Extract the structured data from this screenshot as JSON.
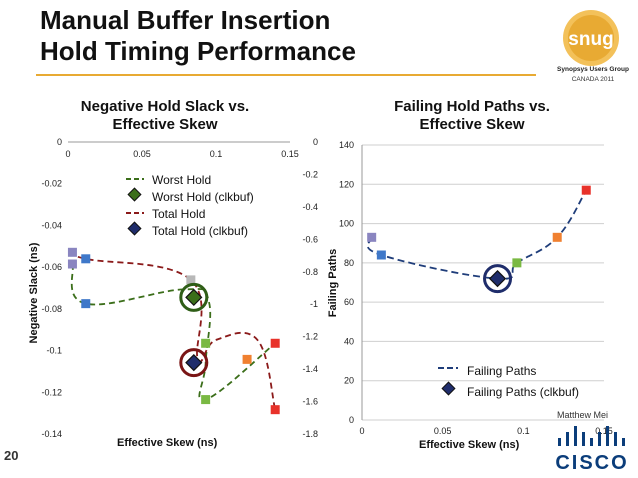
{
  "slide": {
    "title_line1": "Manual Buffer Insertion",
    "title_line2": "Hold Timing Performance",
    "page_number": "20",
    "author": "Matthew Mei",
    "accent_color": "#e8aa33"
  },
  "logos": {
    "snug": {
      "text": "snug",
      "org": "Synopsys Users Group",
      "region": "CANADA 2011",
      "color": "#e8aa33"
    },
    "cisco": {
      "text": "CISCO",
      "color": "#0b3d7a"
    }
  },
  "chart_data": [
    {
      "type": "scatter",
      "title_line1": "Negative Hold Slack vs.",
      "title_line2": "Effective Skew",
      "xlabel": "Effective Skew (ns)",
      "ylabel": "Negative Slack (ns)",
      "xlim": [
        0,
        0.15
      ],
      "ylim_left": [
        -0.14,
        0
      ],
      "ylim_right": [
        -1.8,
        0
      ],
      "x_ticks": [
        "0",
        "0.05",
        "0.1",
        "0.15"
      ],
      "y_ticks_left": [
        "0",
        "-0.02",
        "-0.04",
        "-0.06",
        "-0.08",
        "-0.1",
        "-0.12",
        "-0.14"
      ],
      "y_ticks_right": [
        "0",
        "-0.2",
        "-0.4",
        "-0.6",
        "-0.8",
        "-1",
        "-1.2",
        "-1.4",
        "-1.6",
        "-1.8"
      ],
      "legend": [
        "Worst Hold",
        "Worst Hold (clkbuf)",
        "Total Hold",
        "Total Hold (clkbuf)"
      ],
      "series": [
        {
          "name": "Worst Hold",
          "axis": "left",
          "color": "#3b6e1a",
          "points": [
            {
              "x": 0.003,
              "y": -0.0585,
              "color": "#8a85c0"
            },
            {
              "x": 0.012,
              "y": -0.0775,
              "color": "#3f78c9"
            },
            {
              "x": 0.093,
              "y": -0.0965,
              "color": "#7ab943"
            },
            {
              "x": 0.093,
              "y": -0.1235,
              "color": "#7ab943"
            },
            {
              "x": 0.14,
              "y": -0.0965,
              "color": "#e8322a"
            }
          ]
        },
        {
          "name": "Worst Hold (clkbuf)",
          "axis": "left",
          "color": "#3b6e1a",
          "points": [
            {
              "x": 0.085,
              "y": -0.0745
            }
          ]
        },
        {
          "name": "Total Hold",
          "axis": "right",
          "color": "#8b1a1a",
          "points": [
            {
              "x": 0.003,
              "y": -0.68,
              "color": "#8a85c0"
            },
            {
              "x": 0.012,
              "y": -0.72,
              "color": "#3f78c9"
            },
            {
              "x": 0.083,
              "y": -0.85,
              "color": "#b8b8b8"
            },
            {
              "x": 0.121,
              "y": -1.34,
              "color": "#f08030"
            },
            {
              "x": 0.14,
              "y": -1.65,
              "color": "#e8322a"
            }
          ]
        },
        {
          "name": "Total Hold (clkbuf)",
          "axis": "right",
          "color": "#8b1a1a",
          "points": [
            {
              "x": 0.085,
              "y": -1.36
            }
          ]
        }
      ]
    },
    {
      "type": "scatter",
      "title_line1": "Failing Hold Paths vs.",
      "title_line2": "Effective Skew",
      "xlabel": "Effective Skew (ns)",
      "ylabel": "Failing Paths",
      "xlim": [
        0,
        0.15
      ],
      "ylim": [
        0,
        140
      ],
      "x_ticks": [
        "0",
        "0.05",
        "0.1",
        "0.15"
      ],
      "y_ticks": [
        "0",
        "20",
        "40",
        "60",
        "80",
        "100",
        "120",
        "140"
      ],
      "legend": [
        "Failing Paths",
        "Failing Paths (clkbuf)"
      ],
      "series": [
        {
          "name": "Failing Paths",
          "color": "#1f3d7a",
          "points": [
            {
              "x": 0.006,
              "y": 93,
              "color": "#8a85c0"
            },
            {
              "x": 0.012,
              "y": 84,
              "color": "#3f78c9"
            },
            {
              "x": 0.096,
              "y": 80,
              "color": "#7ab943"
            },
            {
              "x": 0.121,
              "y": 93,
              "color": "#f08030"
            },
            {
              "x": 0.139,
              "y": 117,
              "color": "#e8322a"
            }
          ]
        },
        {
          "name": "Failing Paths (clkbuf)",
          "color": "#1f3d7a",
          "points": [
            {
              "x": 0.084,
              "y": 72
            }
          ]
        }
      ]
    }
  ]
}
